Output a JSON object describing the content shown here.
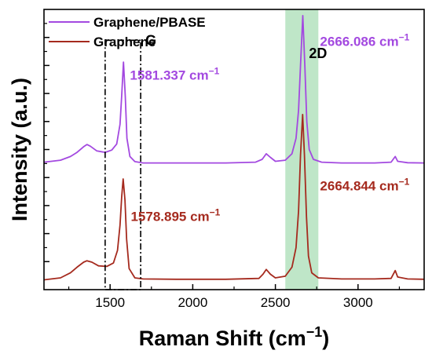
{
  "chart_data": {
    "type": "line",
    "xlabel": "Raman Shift (cm",
    "xlabel_sup": "−1",
    "xlabel_close": ")",
    "ylabel": "Intensity (a.u.)",
    "xlim": [
      1100,
      3400
    ],
    "ylim": [
      0,
      10
    ],
    "xticks": [
      1500,
      2000,
      2500,
      3000
    ],
    "xtick_labels": [
      "1500",
      "2000",
      "2500",
      "3000"
    ],
    "grid": false,
    "legend_position": "top-left",
    "series": [
      {
        "name": "Graphene/PBASE",
        "color": "#a349e0",
        "points": [
          [
            1100,
            4.55
          ],
          [
            1200,
            4.62
          ],
          [
            1260,
            4.75
          ],
          [
            1300,
            4.9
          ],
          [
            1340,
            5.1
          ],
          [
            1360,
            5.18
          ],
          [
            1380,
            5.12
          ],
          [
            1420,
            4.95
          ],
          [
            1470,
            4.9
          ],
          [
            1510,
            4.98
          ],
          [
            1540,
            5.2
          ],
          [
            1560,
            5.9
          ],
          [
            1570,
            6.9
          ],
          [
            1581,
            8.12
          ],
          [
            1592,
            6.9
          ],
          [
            1602,
            5.4
          ],
          [
            1620,
            4.75
          ],
          [
            1650,
            4.57
          ],
          [
            1700,
            4.52
          ],
          [
            1800,
            4.52
          ],
          [
            2000,
            4.52
          ],
          [
            2200,
            4.52
          ],
          [
            2380,
            4.55
          ],
          [
            2420,
            4.65
          ],
          [
            2445,
            4.85
          ],
          [
            2470,
            4.72
          ],
          [
            2500,
            4.58
          ],
          [
            2560,
            4.62
          ],
          [
            2600,
            4.85
          ],
          [
            2625,
            5.4
          ],
          [
            2640,
            6.4
          ],
          [
            2652,
            8.0
          ],
          [
            2666,
            9.78
          ],
          [
            2678,
            8.0
          ],
          [
            2690,
            6.0
          ],
          [
            2705,
            5.0
          ],
          [
            2730,
            4.65
          ],
          [
            2780,
            4.55
          ],
          [
            2900,
            4.52
          ],
          [
            3100,
            4.52
          ],
          [
            3200,
            4.55
          ],
          [
            3225,
            4.75
          ],
          [
            3240,
            4.58
          ],
          [
            3300,
            4.53
          ],
          [
            3400,
            4.52
          ]
        ]
      },
      {
        "name": "Graphene",
        "color": "#a52a1e",
        "points": [
          [
            1100,
            0.35
          ],
          [
            1200,
            0.42
          ],
          [
            1260,
            0.6
          ],
          [
            1300,
            0.8
          ],
          [
            1340,
            0.98
          ],
          [
            1360,
            1.03
          ],
          [
            1390,
            0.98
          ],
          [
            1430,
            0.85
          ],
          [
            1480,
            0.83
          ],
          [
            1520,
            0.95
          ],
          [
            1545,
            1.4
          ],
          [
            1560,
            2.3
          ],
          [
            1570,
            3.3
          ],
          [
            1579,
            3.95
          ],
          [
            1590,
            3.2
          ],
          [
            1600,
            1.8
          ],
          [
            1615,
            0.75
          ],
          [
            1650,
            0.42
          ],
          [
            1700,
            0.38
          ],
          [
            1900,
            0.37
          ],
          [
            2200,
            0.37
          ],
          [
            2400,
            0.4
          ],
          [
            2425,
            0.55
          ],
          [
            2445,
            0.72
          ],
          [
            2470,
            0.55
          ],
          [
            2500,
            0.42
          ],
          [
            2560,
            0.48
          ],
          [
            2600,
            0.8
          ],
          [
            2625,
            1.5
          ],
          [
            2640,
            2.8
          ],
          [
            2652,
            4.8
          ],
          [
            2665,
            6.25
          ],
          [
            2676,
            4.8
          ],
          [
            2688,
            2.6
          ],
          [
            2700,
            1.2
          ],
          [
            2720,
            0.6
          ],
          [
            2760,
            0.42
          ],
          [
            2900,
            0.38
          ],
          [
            3100,
            0.38
          ],
          [
            3200,
            0.4
          ],
          [
            3225,
            0.68
          ],
          [
            3240,
            0.45
          ],
          [
            3300,
            0.38
          ],
          [
            3400,
            0.37
          ]
        ]
      }
    ],
    "annotations": [
      {
        "text": "1581.337 cm",
        "sup": "−1",
        "x": 1620,
        "y": 7.5,
        "color": "#a349e0"
      },
      {
        "text": "2666.086 cm",
        "sup": "−1",
        "x": 2770,
        "y": 8.7,
        "color": "#a349e0"
      },
      {
        "text": "1578.895 cm",
        "sup": "−1",
        "x": 1625,
        "y": 2.45,
        "color": "#a52a1e"
      },
      {
        "text": "2664.844 cm",
        "sup": "−1",
        "x": 2770,
        "y": 3.55,
        "color": "#a52a1e"
      }
    ],
    "regions": [
      {
        "label": "G",
        "x_from": 1470,
        "x_to": 1685,
        "y_from": 0.0,
        "y_to": 8.9,
        "style": "dash-dot box"
      },
      {
        "label": "2D",
        "x_from": 2560,
        "x_to": 2760,
        "y_from": 0.0,
        "y_to": 10.0,
        "style": "green shaded band",
        "color": "#bfe6c8"
      }
    ]
  }
}
